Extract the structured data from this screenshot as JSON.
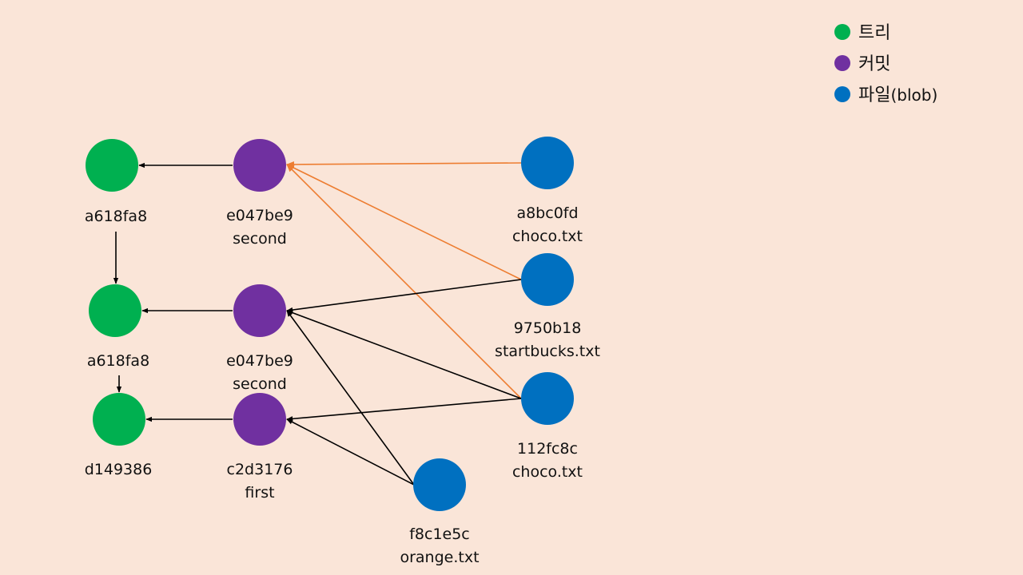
{
  "colors": {
    "background": "#FAE5D8",
    "tree": "#00B050",
    "commit": "#7030A0",
    "blob": "#0070C0",
    "arrow_black": "#000000",
    "arrow_orange": "#ED7D31"
  },
  "legend": [
    {
      "kind": "tree",
      "label": "트리"
    },
    {
      "kind": "commit",
      "label": "커밋"
    },
    {
      "kind": "blob",
      "label": "파일",
      "suffix": "(blob)"
    }
  ],
  "nodes": [
    {
      "id": "tree1",
      "kind": "tree",
      "lines": [
        "a618fa8"
      ]
    },
    {
      "id": "commit1",
      "kind": "commit",
      "lines": [
        "e047be9",
        "second"
      ]
    },
    {
      "id": "blob1",
      "kind": "blob",
      "lines": [
        "a8bc0fd",
        "choco.txt"
      ]
    },
    {
      "id": "tree2",
      "kind": "tree",
      "lines": [
        "a618fa8"
      ]
    },
    {
      "id": "commit2",
      "kind": "commit",
      "lines": [
        "e047be9",
        "second"
      ]
    },
    {
      "id": "blob2",
      "kind": "blob",
      "lines": [
        "9750b18",
        "startbucks.txt"
      ]
    },
    {
      "id": "tree3",
      "kind": "tree",
      "lines": [
        "d149386"
      ]
    },
    {
      "id": "commit3",
      "kind": "commit",
      "lines": [
        "c2d3176",
        "first"
      ]
    },
    {
      "id": "blob3",
      "kind": "blob",
      "lines": [
        "112fc8c",
        "choco.txt"
      ]
    },
    {
      "id": "blob4",
      "kind": "blob",
      "lines": [
        "f8c1e5c",
        "orange.txt"
      ]
    }
  ],
  "edges": [
    {
      "from": "commit1",
      "to": "tree1",
      "color": "black"
    },
    {
      "from": "commit2",
      "to": "tree2",
      "color": "black"
    },
    {
      "from": "commit3",
      "to": "tree3",
      "color": "black"
    },
    {
      "from": "tree1",
      "to": "tree2",
      "color": "black"
    },
    {
      "from": "tree2",
      "to": "tree3",
      "color": "black"
    },
    {
      "from": "blob1",
      "to": "commit1",
      "color": "orange"
    },
    {
      "from": "blob2",
      "to": "commit1",
      "color": "orange"
    },
    {
      "from": "blob3",
      "to": "commit1",
      "color": "orange"
    },
    {
      "from": "blob2",
      "to": "commit2",
      "color": "black"
    },
    {
      "from": "blob3",
      "to": "commit2",
      "color": "black"
    },
    {
      "from": "blob4",
      "to": "commit2",
      "color": "black"
    },
    {
      "from": "blob3",
      "to": "commit3",
      "color": "black"
    },
    {
      "from": "blob4",
      "to": "commit3",
      "color": "black"
    }
  ]
}
